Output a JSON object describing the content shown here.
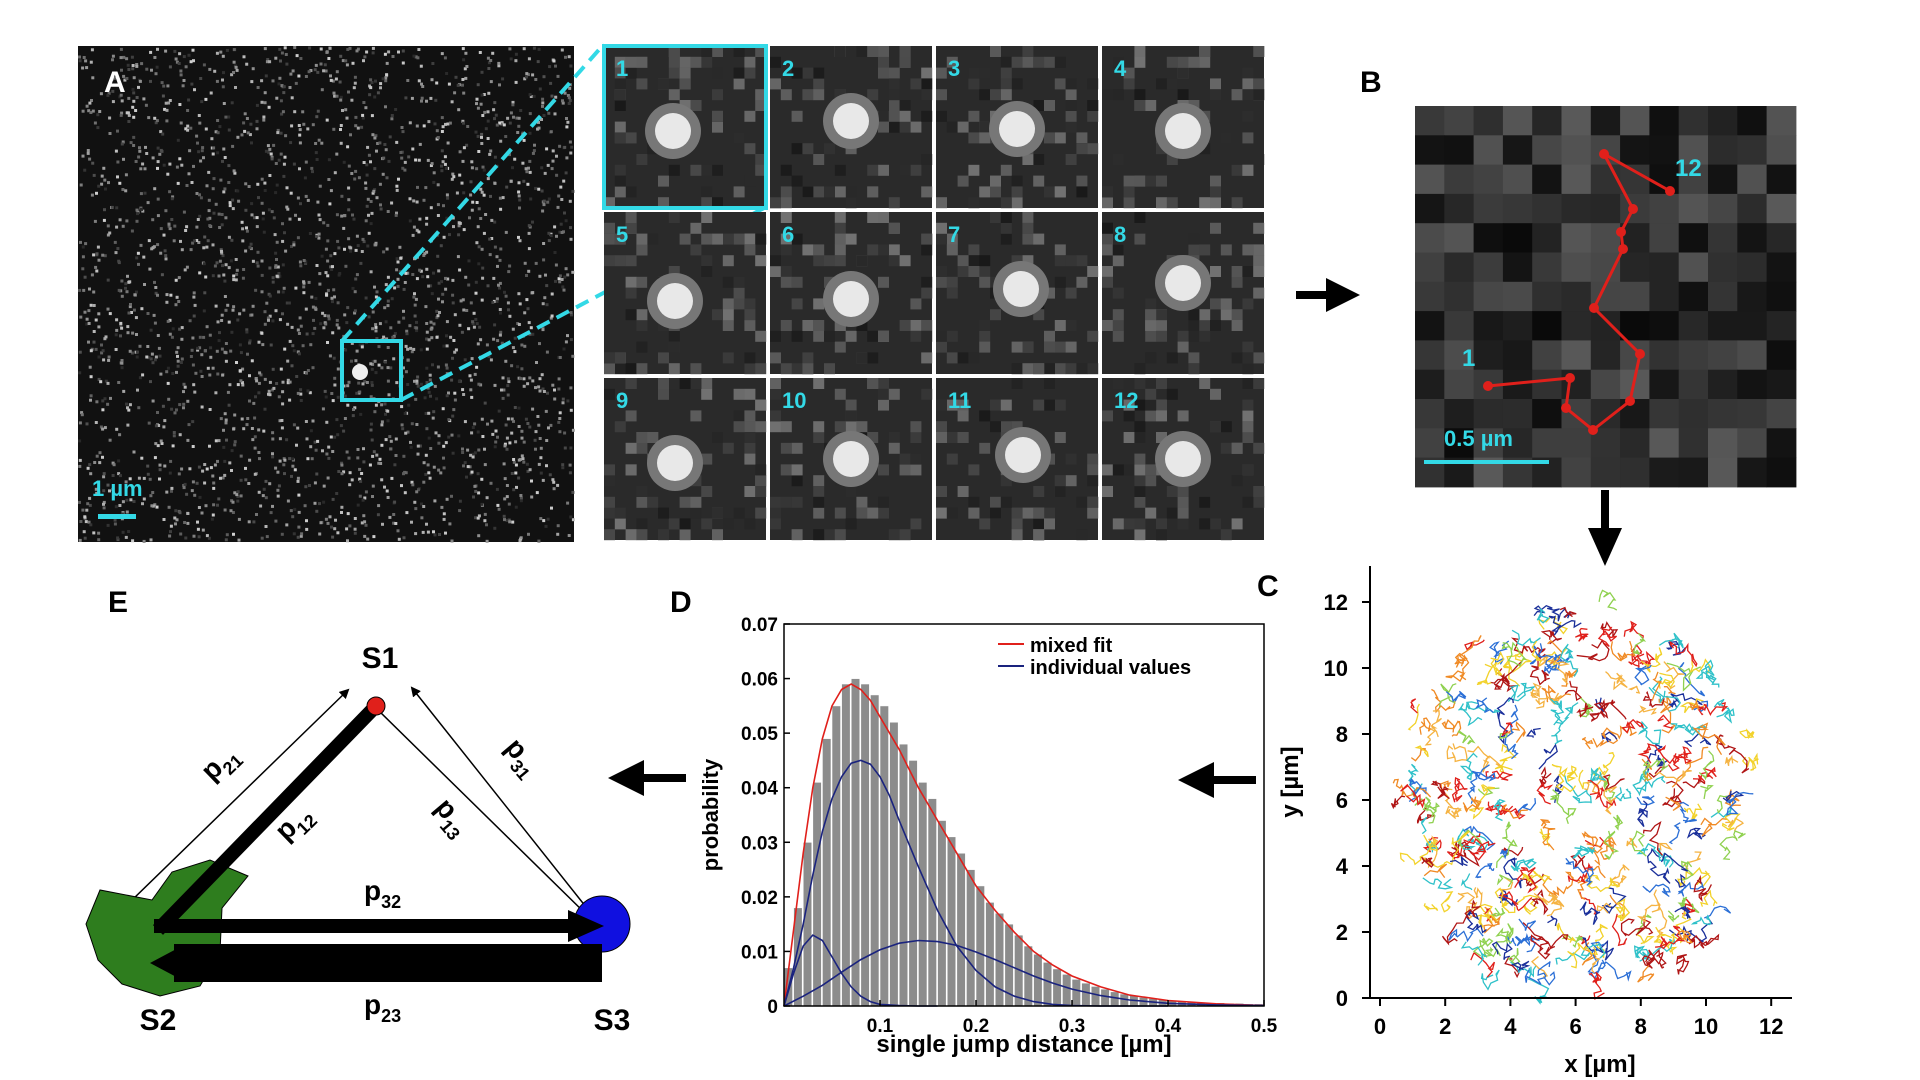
{
  "panel_letters": {
    "a": "A",
    "b": "B",
    "c": "C",
    "d": "D",
    "e": "E"
  },
  "colors": {
    "accent_cyan": "#33d9e6",
    "track_red": "#e0201b",
    "state_s1": "#e0201b",
    "state_s2": "#2e7d1e",
    "state_s3": "#1010e0",
    "hist_bar": "#8c8c8c",
    "fit_red": "#e0201b",
    "fit_blue": "#1a237e"
  },
  "panel_a": {
    "scale_label": "1 µm",
    "frame_labels": [
      "1",
      "2",
      "3",
      "4",
      "5",
      "6",
      "7",
      "8",
      "9",
      "10",
      "11",
      "12"
    ]
  },
  "panel_b": {
    "scale_label": "0.5 µm",
    "start_label": "1",
    "end_label": "12"
  },
  "panel_c": {
    "xlabel": "x [µm]",
    "ylabel": "y [µm]",
    "xticks": [
      "0",
      "2",
      "4",
      "6",
      "8",
      "10",
      "12"
    ],
    "yticks": [
      "0",
      "2",
      "4",
      "6",
      "8",
      "10",
      "12"
    ]
  },
  "panel_e": {
    "s1": "S1",
    "s2": "S2",
    "s3": "S3",
    "p21": {
      "base": "p",
      "sub": "21"
    },
    "p12": {
      "base": "p",
      "sub": "12"
    },
    "p31": {
      "base": "p",
      "sub": "31"
    },
    "p13": {
      "base": "p",
      "sub": "13"
    },
    "p32": {
      "base": "p",
      "sub": "32"
    },
    "p23": {
      "base": "p",
      "sub": "23"
    }
  },
  "chart_data": [
    {
      "type": "bar",
      "panel": "D",
      "xlabel": "single jump distance [µm]",
      "ylabel": "probability",
      "xlim": [
        0,
        0.5
      ],
      "ylim": [
        0,
        0.07
      ],
      "xticks": [
        "0.1",
        "0.2",
        "0.3",
        "0.4",
        "0.5"
      ],
      "yticks": [
        "0",
        "0.01",
        "0.02",
        "0.03",
        "0.04",
        "0.05",
        "0.06",
        "0.07"
      ],
      "grid": false,
      "legend_position": "top-right",
      "bin_width": 0.01,
      "x": [
        0.005,
        0.015,
        0.025,
        0.035,
        0.045,
        0.055,
        0.065,
        0.075,
        0.085,
        0.095,
        0.105,
        0.115,
        0.125,
        0.135,
        0.145,
        0.155,
        0.165,
        0.175,
        0.185,
        0.195,
        0.205,
        0.215,
        0.225,
        0.235,
        0.245,
        0.255,
        0.265,
        0.275,
        0.285,
        0.295,
        0.305,
        0.315,
        0.325,
        0.335,
        0.345,
        0.355,
        0.365,
        0.375,
        0.385,
        0.395,
        0.405,
        0.415,
        0.425,
        0.435,
        0.445,
        0.455,
        0.465,
        0.475,
        0.485,
        0.495
      ],
      "values": [
        0.007,
        0.018,
        0.03,
        0.041,
        0.049,
        0.055,
        0.059,
        0.06,
        0.059,
        0.057,
        0.055,
        0.052,
        0.048,
        0.045,
        0.041,
        0.038,
        0.034,
        0.031,
        0.028,
        0.025,
        0.022,
        0.019,
        0.017,
        0.015,
        0.013,
        0.011,
        0.0095,
        0.008,
        0.0068,
        0.0058,
        0.0049,
        0.0042,
        0.0036,
        0.0031,
        0.0026,
        0.0022,
        0.0019,
        0.0016,
        0.0014,
        0.0012,
        0.001,
        0.0009,
        0.0008,
        0.0007,
        0.0006,
        0.0006,
        0.0005,
        0.0005,
        0.0004,
        0.0004
      ],
      "series": [
        {
          "name": "mixed fit",
          "color": "#e0201b",
          "x": [
            0,
            0.01,
            0.02,
            0.03,
            0.04,
            0.05,
            0.06,
            0.07,
            0.08,
            0.09,
            0.1,
            0.12,
            0.14,
            0.16,
            0.18,
            0.2,
            0.22,
            0.24,
            0.26,
            0.28,
            0.3,
            0.33,
            0.36,
            0.4,
            0.45,
            0.5
          ],
          "y": [
            0,
            0.014,
            0.028,
            0.04,
            0.049,
            0.055,
            0.058,
            0.059,
            0.058,
            0.056,
            0.053,
            0.047,
            0.04,
            0.034,
            0.028,
            0.022,
            0.0175,
            0.0135,
            0.01,
            0.0075,
            0.0055,
            0.0035,
            0.002,
            0.001,
            0.0004,
            0.0001
          ]
        },
        {
          "name": "individual values",
          "color": "#1a237e",
          "x": [
            0,
            0.01,
            0.02,
            0.03,
            0.04,
            0.05,
            0.06,
            0.07,
            0.08,
            0.09,
            0.1,
            0.11,
            0.12,
            0.14,
            0.16,
            0.18,
            0.2,
            0.22,
            0.24,
            0.26,
            0.28,
            0.3,
            0.33,
            0.36,
            0.4
          ],
          "y": [
            0,
            0.007,
            0.015,
            0.024,
            0.032,
            0.038,
            0.042,
            0.0445,
            0.045,
            0.0443,
            0.042,
            0.0385,
            0.034,
            0.0255,
            0.0175,
            0.011,
            0.0065,
            0.0035,
            0.0018,
            0.0008,
            0.0003,
            0.0001,
            0,
            0,
            0
          ]
        },
        {
          "name": "",
          "x": [
            0,
            0.01,
            0.02,
            0.03,
            0.04,
            0.05,
            0.06,
            0.07,
            0.08,
            0.09,
            0.1,
            0.12,
            0.14,
            0.16
          ],
          "y": [
            0,
            0.006,
            0.011,
            0.013,
            0.012,
            0.009,
            0.006,
            0.0035,
            0.0018,
            0.0008,
            0.0003,
            0.0001,
            0,
            0
          ]
        },
        {
          "name": "",
          "x": [
            0,
            0.02,
            0.04,
            0.06,
            0.08,
            0.1,
            0.12,
            0.14,
            0.16,
            0.18,
            0.2,
            0.22,
            0.24,
            0.26,
            0.28,
            0.3,
            0.33,
            0.36,
            0.4,
            0.45,
            0.5
          ],
          "y": [
            0,
            0.0018,
            0.0038,
            0.0062,
            0.0085,
            0.0103,
            0.0115,
            0.012,
            0.0118,
            0.0111,
            0.0099,
            0.0085,
            0.007,
            0.0055,
            0.0042,
            0.0031,
            0.0019,
            0.0011,
            0.0005,
            0.0002,
            0.0001
          ]
        }
      ]
    },
    {
      "type": "scatter",
      "panel": "C",
      "xlabel": "x [µm]",
      "ylabel": "y [µm]",
      "xlim": [
        0,
        12.8
      ],
      "ylim": [
        0,
        12.5
      ],
      "grid": false,
      "description_trajectories": 0
    }
  ]
}
